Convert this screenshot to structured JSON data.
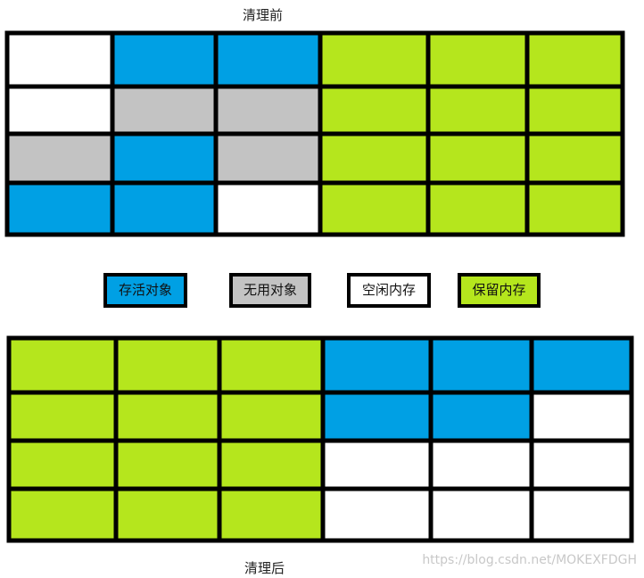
{
  "before": {
    "title": "清理前"
  },
  "after": {
    "title": "清理后"
  },
  "legend": [
    "存活对象",
    "无用对象",
    "空闲内存",
    "保留内存"
  ],
  "watermark": "https://blog.csdn.net/MOKEXFDGH"
}
